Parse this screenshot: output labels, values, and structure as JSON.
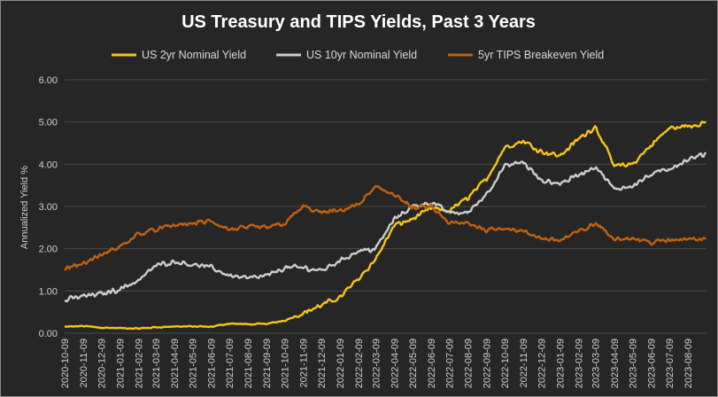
{
  "chart_data": {
    "type": "line",
    "title": "US Treasury and TIPS Yields, Past 3 Years",
    "xlabel": "",
    "ylabel": "Annualized Yield %",
    "ylim": [
      0,
      6
    ],
    "yticks": [
      "0.00",
      "1.00",
      "2.00",
      "3.00",
      "4.00",
      "5.00",
      "6.00"
    ],
    "grid": true,
    "legend_position": "top",
    "x": [
      "2020-10-09",
      "2020-11-09",
      "2020-12-09",
      "2021-01-09",
      "2021-02-09",
      "2021-03-09",
      "2021-04-09",
      "2021-05-09",
      "2021-06-09",
      "2021-07-09",
      "2021-08-09",
      "2021-09-09",
      "2021-10-09",
      "2021-11-09",
      "2021-12-09",
      "2022-01-09",
      "2022-02-09",
      "2022-03-09",
      "2022-04-09",
      "2022-05-09",
      "2022-06-09",
      "2022-07-09",
      "2022-08-09",
      "2022-09-09",
      "2022-10-09",
      "2022-11-09",
      "2022-12-09",
      "2023-01-09",
      "2023-02-09",
      "2023-03-09",
      "2023-04-09",
      "2023-05-09",
      "2023-06-09",
      "2023-07-09",
      "2023-08-09",
      "2023-09-09"
    ],
    "xtick_labels": [
      "2020-10-09",
      "2020-11-09",
      "2020-12-09",
      "2021-01-09",
      "2021-02-09",
      "2021-03-09",
      "2021-04-09",
      "2021-05-09",
      "2021-06-09",
      "2021-07-09",
      "2021-08-09",
      "2021-09-09",
      "2021-10-09",
      "2021-11-09",
      "2021-12-09",
      "2022-01-09",
      "2022-02-09",
      "2022-03-09",
      "2022-04-09",
      "2022-05-09",
      "2022-06-09",
      "2022-07-09",
      "2022-08-09",
      "2022-09-09",
      "2022-10-09",
      "2022-11-09",
      "2022-12-09",
      "2023-01-09",
      "2023-02-09",
      "2023-03-09",
      "2023-04-09",
      "2023-05-09",
      "2023-06-09",
      "2023-07-09",
      "2023-08-09"
    ],
    "series": [
      {
        "name": "US 2yr Nominal Yield",
        "color": "#f5c518",
        "values": [
          0.15,
          0.17,
          0.13,
          0.12,
          0.11,
          0.14,
          0.16,
          0.16,
          0.15,
          0.23,
          0.21,
          0.22,
          0.3,
          0.48,
          0.66,
          0.85,
          1.3,
          1.75,
          2.55,
          2.7,
          2.95,
          2.9,
          3.2,
          3.65,
          4.4,
          4.55,
          4.3,
          4.2,
          4.6,
          4.9,
          3.95,
          4.0,
          4.45,
          4.85,
          4.9,
          5.0
        ]
      },
      {
        "name": "US 10yr Nominal Yield",
        "color": "#cccccc",
        "values": [
          0.78,
          0.88,
          0.93,
          1.05,
          1.25,
          1.6,
          1.7,
          1.63,
          1.55,
          1.37,
          1.3,
          1.35,
          1.55,
          1.55,
          1.48,
          1.72,
          1.95,
          2.0,
          2.7,
          3.0,
          3.1,
          2.85,
          2.85,
          3.3,
          3.95,
          4.05,
          3.6,
          3.55,
          3.75,
          3.95,
          3.4,
          3.5,
          3.75,
          3.9,
          4.1,
          4.25
        ]
      },
      {
        "name": "5yr TIPS Breakeven Yield",
        "color": "#c0610e",
        "values": [
          1.55,
          1.65,
          1.85,
          2.05,
          2.35,
          2.45,
          2.55,
          2.6,
          2.65,
          2.45,
          2.5,
          2.5,
          2.6,
          3.0,
          2.85,
          2.9,
          3.05,
          3.45,
          3.3,
          2.95,
          3.0,
          2.6,
          2.6,
          2.45,
          2.5,
          2.4,
          2.25,
          2.2,
          2.4,
          2.6,
          2.25,
          2.25,
          2.15,
          2.2,
          2.25,
          2.25
        ]
      }
    ]
  }
}
